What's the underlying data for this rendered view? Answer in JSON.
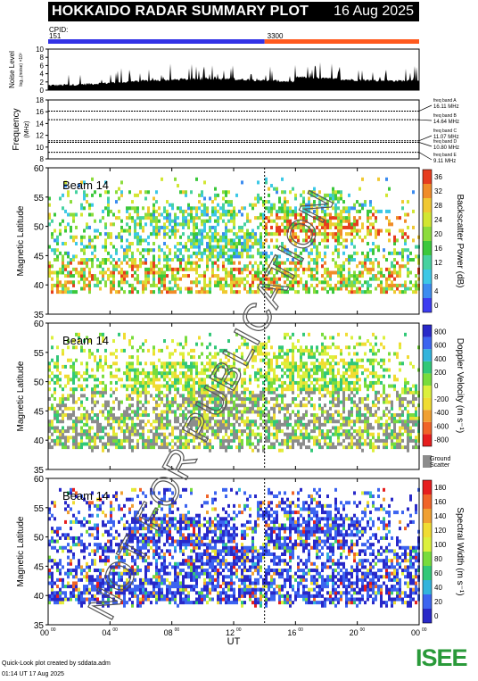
{
  "header": {
    "title": "HOKKAIDO RADAR SUMMARY PLOT",
    "date": "16 Aug 2025"
  },
  "cpid": {
    "label": "CPID:",
    "values": [
      "151",
      "3300"
    ],
    "switch_ut": 14.0,
    "colors": [
      "#3232e6",
      "#ff5a1e"
    ]
  },
  "noise": {
    "ylabel": "Noise Level",
    "ylabel_sub": "log₁₀(noise) ×10²",
    "ylim": [
      0,
      10
    ],
    "ticks": [
      "0",
      "2",
      "4",
      "6",
      "8",
      "10"
    ]
  },
  "frequency": {
    "ylabel": "Frequency",
    "ylabel_unit": "(MHz)",
    "ylim": [
      8,
      18
    ],
    "ticks": [
      "8",
      "10",
      "12",
      "14",
      "16",
      "18"
    ],
    "bands": [
      {
        "name": "freq band A",
        "label": "16.11 MHz",
        "mhz": 16.11
      },
      {
        "name": "freq band B",
        "label": "14.64 MHz",
        "mhz": 14.64
      },
      {
        "name": "freq band C",
        "label": "11.07 MHz",
        "mhz": 11.07
      },
      {
        "name": "freq band D",
        "label": "10.80 MHz",
        "mhz": 10.8
      },
      {
        "name": "freq band E",
        "label": "9.11 MHz",
        "mhz": 9.11
      }
    ]
  },
  "chart_data": [
    {
      "type": "heatmap",
      "title": "Beam 14",
      "ylabel": "Magnetic Latitude",
      "ylim": [
        35,
        60
      ],
      "yticks": [
        "35",
        "40",
        "45",
        "50",
        "55",
        "60"
      ],
      "xlim": [
        0,
        24
      ],
      "colorbar": {
        "label": "Backscatter Power (dB)",
        "ticks": [
          "0",
          "4",
          "8",
          "12",
          "16",
          "20",
          "24",
          "28",
          "32",
          "36"
        ],
        "range": [
          0,
          36
        ]
      }
    },
    {
      "type": "heatmap",
      "title": "Beam 14",
      "ylabel": "Magnetic Latitude",
      "ylim": [
        35,
        60
      ],
      "yticks": [
        "35",
        "40",
        "45",
        "50",
        "55",
        "60"
      ],
      "xlim": [
        0,
        24
      ],
      "colorbar": {
        "label": "Doppler Velocity (m s⁻¹)",
        "ticks": [
          "-800",
          "-600",
          "-400",
          "-200",
          "0",
          "200",
          "400",
          "600",
          "800"
        ],
        "range": [
          -800,
          800
        ]
      },
      "ground_scatter_label": [
        "Ground",
        "Scatter"
      ]
    },
    {
      "type": "heatmap",
      "title": "Beam 14",
      "ylabel": "Magnetic Latitude",
      "ylim": [
        35,
        60
      ],
      "yticks": [
        "35",
        "40",
        "45",
        "50",
        "55",
        "60"
      ],
      "xlim": [
        0,
        24
      ],
      "xlabel": "UT",
      "xticks": [
        "00",
        "04",
        "08",
        "12",
        "16",
        "20",
        "00"
      ],
      "xtick_sup": "00",
      "colorbar": {
        "label": "Spectral Width (m s⁻¹)",
        "ticks": [
          "0",
          "20",
          "40",
          "60",
          "80",
          "100",
          "120",
          "140",
          "160",
          "180"
        ],
        "range": [
          0,
          180
        ]
      }
    }
  ],
  "watermark": "NOT FOR PUBLICATION",
  "footer": {
    "line1": "Quick-Look plot created by sddata.adm",
    "line2": "01:14 UT 17 Aug 2025"
  },
  "logo": {
    "text": "ISEE"
  }
}
